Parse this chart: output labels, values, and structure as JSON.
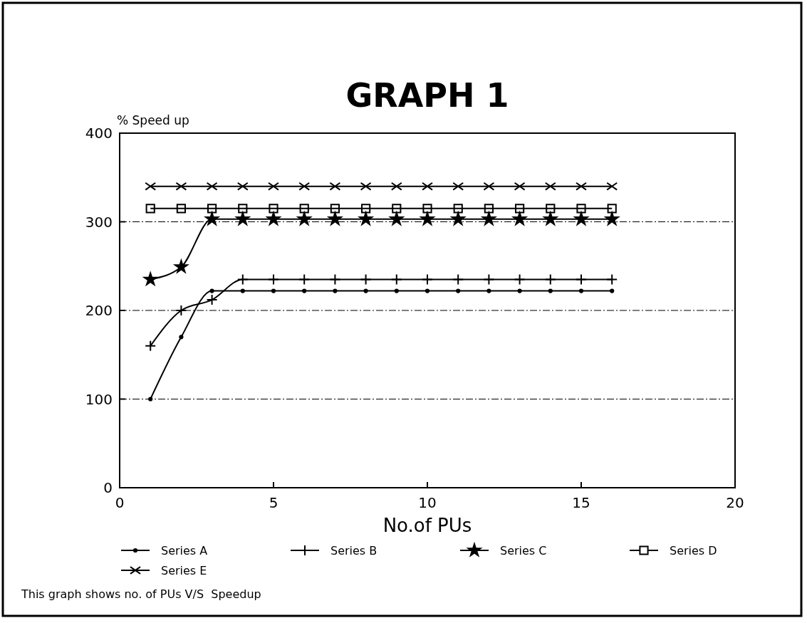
{
  "chart_data": {
    "type": "line",
    "title": "GRAPH 1",
    "ylabel": "% Speed up",
    "xlabel": "No.of PUs",
    "xlim": [
      0,
      20
    ],
    "xticks": [
      0,
      5,
      10,
      15,
      20
    ],
    "ylim": [
      0,
      400
    ],
    "yticks": [
      0,
      100,
      200,
      300,
      400
    ],
    "grid": "y",
    "legend": "bottom",
    "x": [
      1,
      2,
      3,
      4,
      5,
      6,
      7,
      8,
      9,
      10,
      11,
      12,
      13,
      14,
      15,
      16
    ],
    "series": [
      {
        "name": "Series A",
        "color": "#000000",
        "marker": "circle",
        "values": [
          100,
          170,
          222,
          222,
          222,
          222,
          222,
          222,
          222,
          222,
          222,
          222,
          222,
          222,
          222,
          222
        ]
      },
      {
        "name": "Series B",
        "color": "#000000",
        "marker": "cross",
        "values": [
          160,
          200,
          212,
          235,
          235,
          235,
          235,
          235,
          235,
          235,
          235,
          235,
          235,
          235,
          235,
          235
        ]
      },
      {
        "name": "Series C",
        "color": "#000000",
        "marker": "star",
        "values": [
          235,
          249,
          303,
          303,
          303,
          303,
          303,
          303,
          303,
          303,
          303,
          303,
          303,
          303,
          303,
          303
        ]
      },
      {
        "name": "Series D",
        "color": "#000000",
        "marker": "square",
        "values": [
          315,
          315,
          315,
          315,
          315,
          315,
          315,
          315,
          315,
          315,
          315,
          315,
          315,
          315,
          315,
          315
        ]
      },
      {
        "name": "Series E",
        "color": "#000000",
        "marker": "x",
        "values": [
          340,
          340,
          340,
          340,
          340,
          340,
          340,
          340,
          340,
          340,
          340,
          340,
          340,
          340,
          340,
          340
        ]
      }
    ],
    "annotations": [
      "This graph shows no. of PUs V/S  Speedup"
    ]
  }
}
